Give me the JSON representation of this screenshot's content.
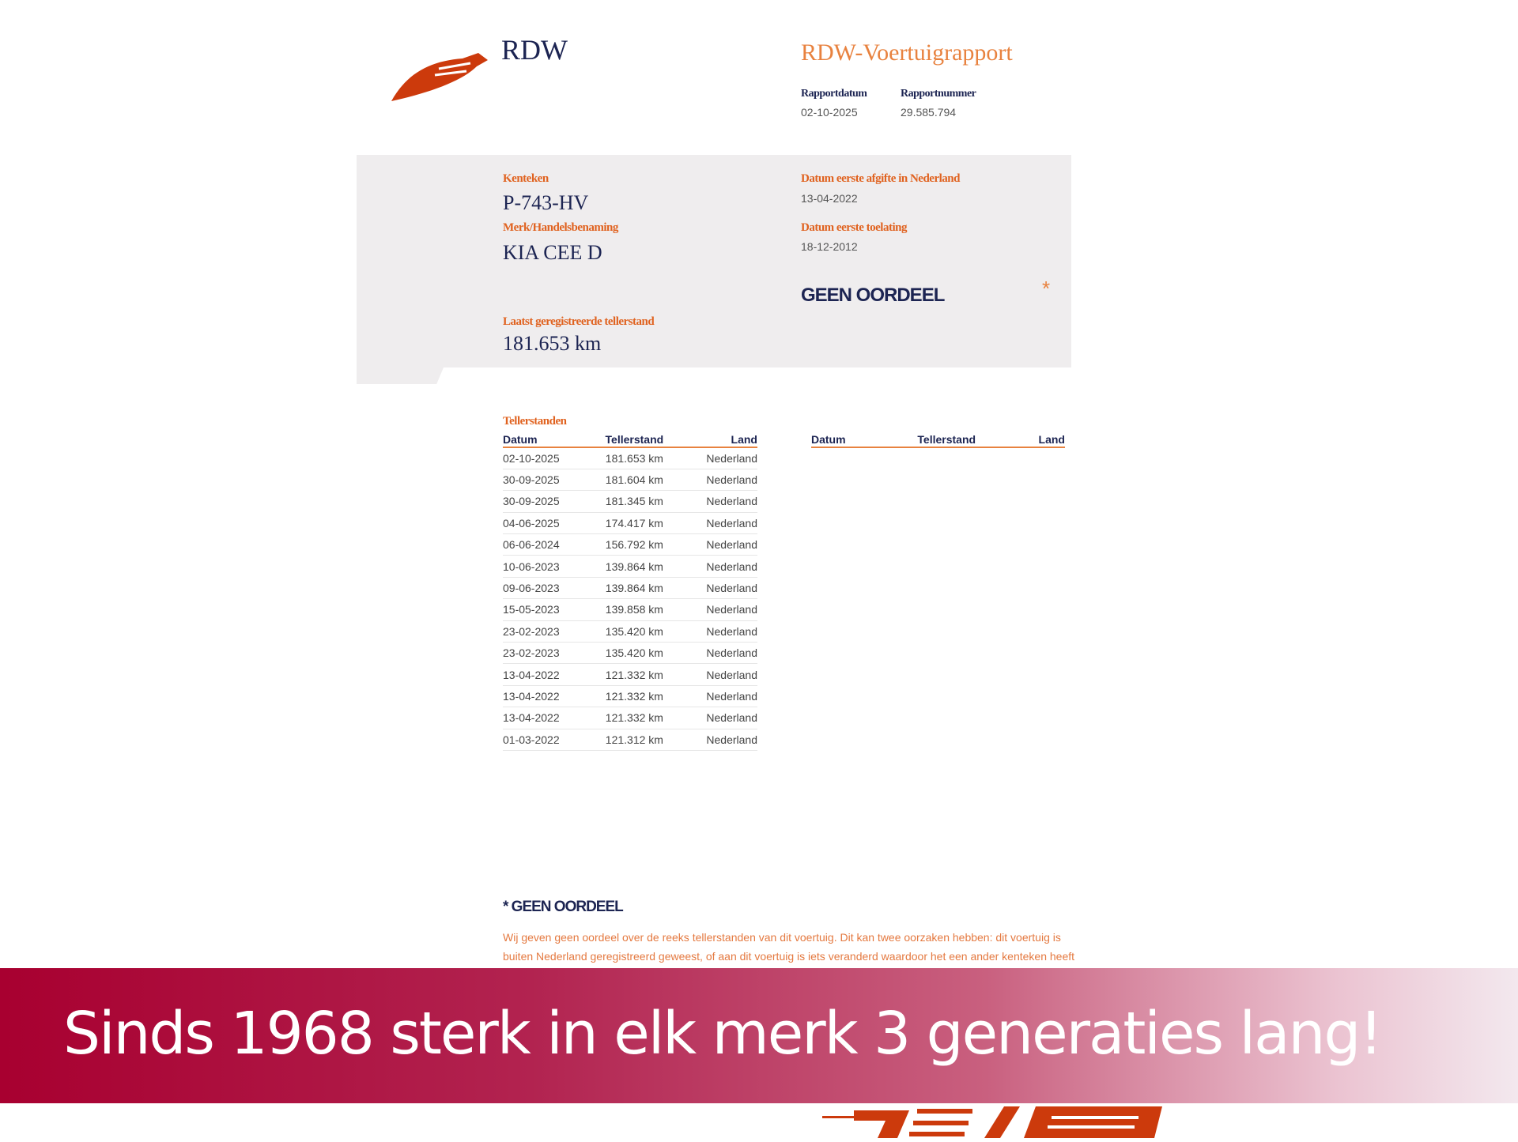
{
  "header": {
    "logo_text": "RDW",
    "report_title": "RDW-Voertuigrapport",
    "report_date_label": "Rapportdatum",
    "report_date": "02-10-2025",
    "report_number_label": "Rapportnummer",
    "report_number": "29.585.794"
  },
  "vehicle": {
    "plate_label": "Kenteken",
    "plate": "P-743-HV",
    "make_label": "Merk/Handelsbenaming",
    "make": "KIA CEE D",
    "first_nl_label": "Datum eerste afgifte in Nederland",
    "first_nl": "13-04-2022",
    "first_adm_label": "Datum eerste toelating",
    "first_adm": "18-12-2012",
    "verdict": "GEEN OORDEEL",
    "verdict_mark": "*",
    "odo_label": "Laatst geregistreerde tellerstand",
    "odo": "181.653 km"
  },
  "odometer": {
    "title": "Tellerstanden",
    "columns": [
      "Datum",
      "Tellerstand",
      "Land"
    ],
    "rows": [
      [
        "02-10-2025",
        "181.653 km",
        "Nederland"
      ],
      [
        "30-09-2025",
        "181.604 km",
        "Nederland"
      ],
      [
        "30-09-2025",
        "181.345 km",
        "Nederland"
      ],
      [
        "04-06-2025",
        "174.417 km",
        "Nederland"
      ],
      [
        "06-06-2024",
        "156.792 km",
        "Nederland"
      ],
      [
        "10-06-2023",
        "139.864 km",
        "Nederland"
      ],
      [
        "09-06-2023",
        "139.864 km",
        "Nederland"
      ],
      [
        "15-05-2023",
        "139.858 km",
        "Nederland"
      ],
      [
        "23-02-2023",
        "135.420 km",
        "Nederland"
      ],
      [
        "23-02-2023",
        "135.420 km",
        "Nederland"
      ],
      [
        "13-04-2022",
        "121.332 km",
        "Nederland"
      ],
      [
        "13-04-2022",
        "121.332 km",
        "Nederland"
      ],
      [
        "13-04-2022",
        "121.332 km",
        "Nederland"
      ],
      [
        "01-03-2022",
        "121.312 km",
        "Nederland"
      ]
    ]
  },
  "footnote": {
    "title": "* GEEN OORDEEL",
    "text": "Wij geven geen oordeel over de reeks tellerstanden van dit voertuig. Dit kan twee oorzaken hebben: dit voertuig is buiten Nederland geregistreerd geweest, of aan dit voertuig is iets veranderd waardoor het een ander kenteken heeft gekregen."
  },
  "banner": {
    "text": "Sinds 1968 sterk in elk merk 3 generaties lang!",
    "color": "#a80030"
  },
  "colors": {
    "accent": "#e0621f",
    "navy": "#1c2452",
    "logo": "#cc3a0c"
  }
}
